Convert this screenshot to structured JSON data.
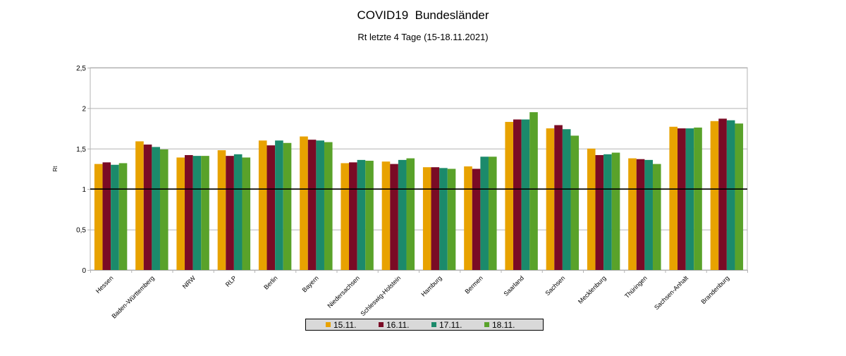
{
  "chart_data": {
    "type": "bar",
    "title": "COVID19  Bundesländer",
    "subtitle": "Rt letzte 4 Tage (15-18.11.2021)",
    "xlabel": "",
    "ylabel": "Rt",
    "ylim": [
      0,
      2.5
    ],
    "yticks": [
      "0",
      "0,5",
      "1",
      "1,5",
      "2",
      "2,5"
    ],
    "ytick_values": [
      0,
      0.5,
      1,
      1.5,
      2,
      2.5
    ],
    "reference_line": 1,
    "grid": true,
    "legend_position": "bottom",
    "categories": [
      "Hessen",
      "Baden-Württemberg",
      "NRW",
      "RLP",
      "Berlin",
      "Bayern",
      "Niedersachsen",
      "Schleswig-Holstein",
      "Hamburg",
      "Bermen",
      "Saarland",
      "Sachsen",
      "Mecklenburg",
      "Thüringen",
      "Sachsen-Anhalt",
      "Brandenburg"
    ],
    "series": [
      {
        "name": "15.11.",
        "color": "#e8a200",
        "values": [
          1.31,
          1.59,
          1.39,
          1.48,
          1.6,
          1.65,
          1.32,
          1.34,
          1.27,
          1.28,
          1.83,
          1.75,
          1.5,
          1.38,
          1.77,
          1.84
        ]
      },
      {
        "name": "16.11.",
        "color": "#7a0b25",
        "values": [
          1.33,
          1.55,
          1.42,
          1.41,
          1.54,
          1.61,
          1.33,
          1.31,
          1.27,
          1.25,
          1.86,
          1.79,
          1.42,
          1.37,
          1.75,
          1.87
        ]
      },
      {
        "name": "17.11.",
        "color": "#1b8a6b",
        "values": [
          1.3,
          1.52,
          1.41,
          1.43,
          1.6,
          1.6,
          1.36,
          1.36,
          1.26,
          1.4,
          1.86,
          1.74,
          1.43,
          1.36,
          1.75,
          1.85
        ]
      },
      {
        "name": "18.11.",
        "color": "#59a22a",
        "values": [
          1.32,
          1.49,
          1.41,
          1.39,
          1.57,
          1.58,
          1.35,
          1.38,
          1.25,
          1.4,
          1.95,
          1.66,
          1.45,
          1.31,
          1.76,
          1.81
        ]
      }
    ]
  }
}
